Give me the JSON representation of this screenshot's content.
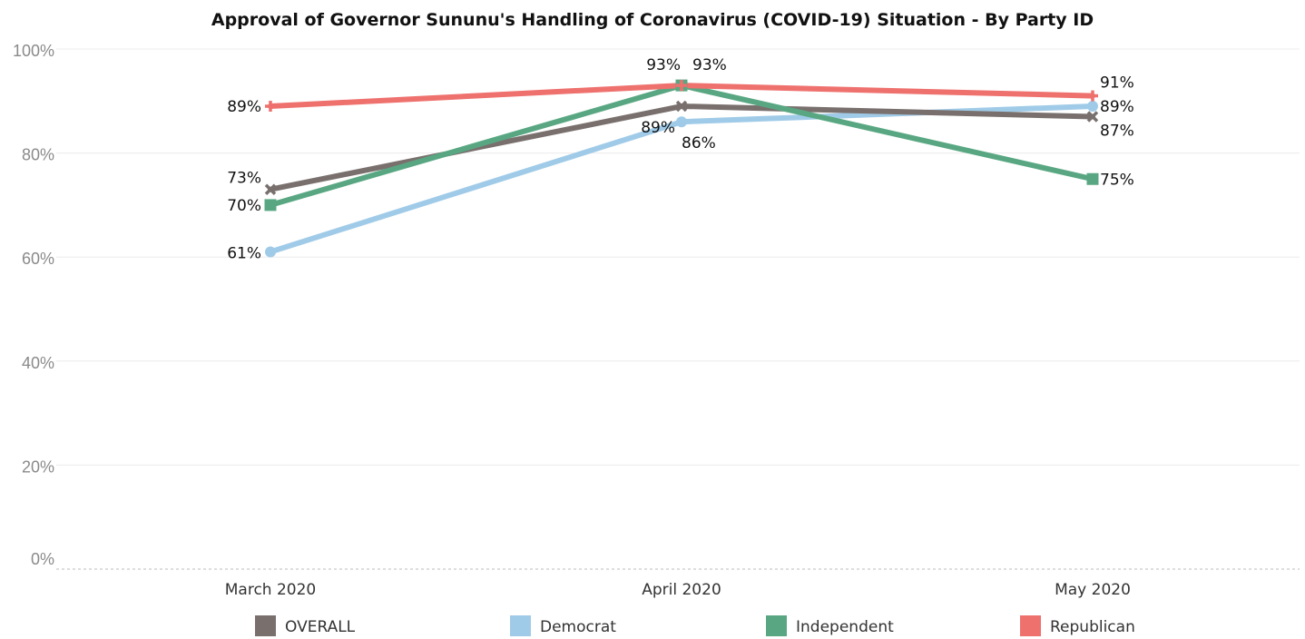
{
  "chart_data": {
    "type": "line",
    "title": "Approval of Governor Sununu's Handling of Coronavirus (COVID-19) Situation - By Party ID",
    "xlabel": "",
    "ylabel": "",
    "categories": [
      "March 2020",
      "April 2020",
      "May 2020"
    ],
    "ylim": [
      0,
      100
    ],
    "yticks": [
      0,
      20,
      40,
      60,
      80,
      100
    ],
    "ytick_labels": [
      "0%",
      "20%",
      "40%",
      "60%",
      "80%",
      "100%"
    ],
    "grid": true,
    "legend_position": "bottom",
    "series": [
      {
        "name": "OVERALL",
        "color": "#79706e",
        "marker": "x",
        "values": [
          73,
          89,
          87
        ],
        "labels": [
          "73%",
          "89%",
          "87%"
        ]
      },
      {
        "name": "Democrat",
        "color": "#a0cbe8",
        "marker": "circle",
        "values": [
          61,
          86,
          89
        ],
        "labels": [
          "61%",
          "86%",
          "89%"
        ]
      },
      {
        "name": "Independent",
        "color": "#59a782",
        "marker": "square",
        "values": [
          70,
          93,
          75
        ],
        "labels": [
          "70%",
          "93%",
          "75%"
        ]
      },
      {
        "name": "Republican",
        "color": "#ee716e",
        "marker": "plus",
        "values": [
          89,
          93,
          91
        ],
        "labels": [
          "89%",
          "93%",
          "91%"
        ]
      }
    ]
  }
}
